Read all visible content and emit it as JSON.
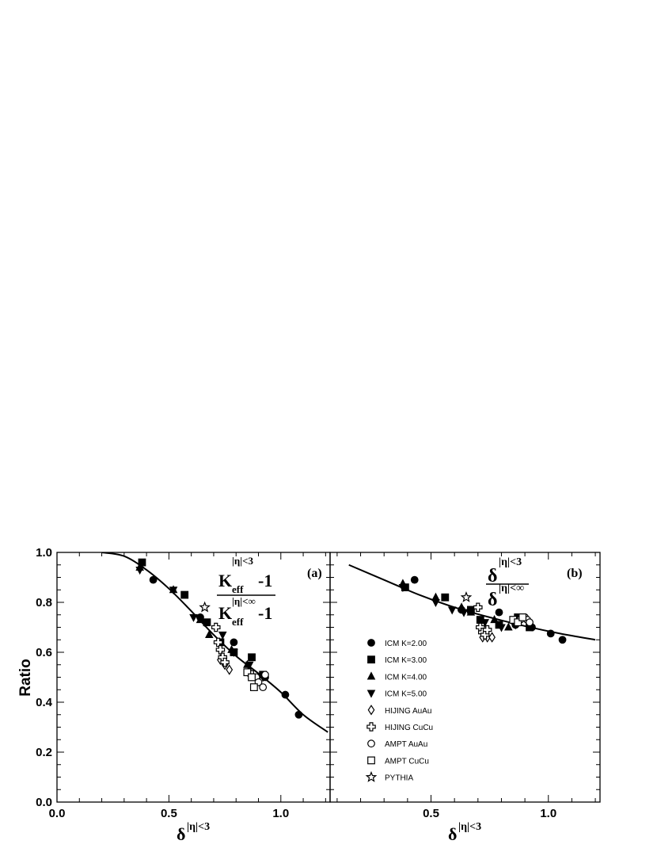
{
  "chart_data": [
    {
      "type": "scatter",
      "panel": "a",
      "panel_label": "(a)",
      "ylabel": "Ratio",
      "xlabel": {
        "base": "δ",
        "sup": "|η|<3"
      },
      "annotation": {
        "num_base": "K",
        "num_sub": "eff",
        "num_sup": "|η|<3",
        "num_tail": "-1",
        "den_base": "K",
        "den_sub": "eff",
        "den_sup": "|η|<∞",
        "den_tail": "-1"
      },
      "xlim": [
        0.0,
        1.22
      ],
      "ylim": [
        0.0,
        1.0
      ],
      "xticks": [
        "0.0",
        "0.5",
        "1.0"
      ],
      "yticks": [
        "0.0",
        "0.2",
        "0.4",
        "0.6",
        "0.8",
        "1.0"
      ],
      "curve": [
        [
          0.2,
          1.0
        ],
        [
          0.3,
          0.985
        ],
        [
          0.4,
          0.93
        ],
        [
          0.5,
          0.855
        ],
        [
          0.6,
          0.765
        ],
        [
          0.7,
          0.67
        ],
        [
          0.8,
          0.585
        ],
        [
          0.9,
          0.515
        ],
        [
          1.0,
          0.44
        ],
        [
          1.1,
          0.35
        ],
        [
          1.21,
          0.28
        ]
      ],
      "series": [
        {
          "marker": "circle-filled",
          "points": [
            [
              0.43,
              0.89
            ],
            [
              0.64,
              0.74
            ],
            [
              0.79,
              0.64
            ],
            [
              0.93,
              0.5
            ],
            [
              1.02,
              0.43
            ],
            [
              1.08,
              0.35
            ]
          ]
        },
        {
          "marker": "square-filled",
          "points": [
            [
              0.38,
              0.96
            ],
            [
              0.57,
              0.83
            ],
            [
              0.67,
              0.72
            ],
            [
              0.73,
              0.64
            ],
            [
              0.79,
              0.6
            ],
            [
              0.87,
              0.58
            ],
            [
              0.92,
              0.51
            ]
          ]
        },
        {
          "marker": "triangle-up-filled",
          "points": [
            [
              0.37,
              0.94
            ],
            [
              0.52,
              0.85
            ],
            [
              0.64,
              0.73
            ],
            [
              0.68,
              0.67
            ],
            [
              0.78,
              0.61
            ],
            [
              0.85,
              0.55
            ]
          ]
        },
        {
          "marker": "triangle-down-filled",
          "points": [
            [
              0.37,
              0.93
            ],
            [
              0.52,
              0.85
            ],
            [
              0.61,
              0.74
            ],
            [
              0.66,
              0.72
            ],
            [
              0.74,
              0.67
            ],
            [
              0.79,
              0.6
            ],
            [
              0.86,
              0.55
            ],
            [
              0.92,
              0.5
            ]
          ]
        },
        {
          "marker": "diamond-open",
          "points": [
            [
              0.73,
              0.57
            ],
            [
              0.75,
              0.55
            ],
            [
              0.77,
              0.53
            ]
          ]
        },
        {
          "marker": "cross-open",
          "points": [
            [
              0.71,
              0.7
            ],
            [
              0.72,
              0.64
            ],
            [
              0.73,
              0.61
            ],
            [
              0.74,
              0.58
            ],
            [
              0.75,
              0.56
            ],
            [
              0.86,
              0.52
            ]
          ]
        },
        {
          "marker": "circle-open",
          "points": [
            [
              0.89,
              0.5
            ],
            [
              0.9,
              0.48
            ],
            [
              0.92,
              0.46
            ],
            [
              0.93,
              0.51
            ]
          ]
        },
        {
          "marker": "square-open",
          "points": [
            [
              0.85,
              0.52
            ],
            [
              0.87,
              0.5
            ],
            [
              0.88,
              0.46
            ]
          ]
        },
        {
          "marker": "star-open",
          "points": [
            [
              0.66,
              0.78
            ]
          ]
        }
      ]
    },
    {
      "type": "scatter",
      "panel": "b",
      "panel_label": "(b)",
      "xlabel": {
        "base": "δ",
        "sup": "|η|<3"
      },
      "annotation": {
        "num_base": "δ",
        "num_sup": "|η|<3",
        "den_base": "δ",
        "den_sup": "|η|<∞"
      },
      "xlim": [
        0.07,
        1.22
      ],
      "ylim": [
        0.0,
        1.0
      ],
      "xticks": [
        "0.5",
        "1.0"
      ],
      "curve": [
        [
          0.15,
          0.95
        ],
        [
          0.3,
          0.89
        ],
        [
          0.45,
          0.83
        ],
        [
          0.6,
          0.78
        ],
        [
          0.75,
          0.74
        ],
        [
          0.9,
          0.705
        ],
        [
          1.05,
          0.675
        ],
        [
          1.2,
          0.65
        ]
      ],
      "legend": [
        {
          "marker": "circle-filled",
          "label": "ICM K=2.00"
        },
        {
          "marker": "square-filled",
          "label": "ICM K=3.00"
        },
        {
          "marker": "triangle-up-filled",
          "label": "ICM K=4.00"
        },
        {
          "marker": "triangle-down-filled",
          "label": "ICM K=5.00"
        },
        {
          "marker": "diamond-open",
          "label": "HIJING AuAu"
        },
        {
          "marker": "cross-open",
          "label": "HIJING CuCu"
        },
        {
          "marker": "circle-open",
          "label": "AMPT AuAu"
        },
        {
          "marker": "square-open",
          "label": "AMPT CuCu"
        },
        {
          "marker": "star-open",
          "label": "PYTHIA"
        }
      ],
      "series": [
        {
          "marker": "circle-filled",
          "points": [
            [
              0.43,
              0.89
            ],
            [
              0.63,
              0.77
            ],
            [
              0.79,
              0.76
            ],
            [
              0.86,
              0.71
            ],
            [
              0.93,
              0.7
            ],
            [
              1.01,
              0.675
            ],
            [
              1.06,
              0.65
            ]
          ]
        },
        {
          "marker": "square-filled",
          "points": [
            [
              0.39,
              0.86
            ],
            [
              0.56,
              0.82
            ],
            [
              0.67,
              0.77
            ],
            [
              0.71,
              0.73
            ],
            [
              0.79,
              0.71
            ],
            [
              0.87,
              0.74
            ],
            [
              0.92,
              0.7
            ]
          ]
        },
        {
          "marker": "triangle-up-filled",
          "points": [
            [
              0.38,
              0.875
            ],
            [
              0.52,
              0.82
            ],
            [
              0.63,
              0.78
            ],
            [
              0.67,
              0.76
            ],
            [
              0.77,
              0.73
            ],
            [
              0.83,
              0.7
            ]
          ]
        },
        {
          "marker": "triangle-down-filled",
          "points": [
            [
              0.38,
              0.86
            ],
            [
              0.52,
              0.8
            ],
            [
              0.59,
              0.77
            ],
            [
              0.64,
              0.76
            ],
            [
              0.73,
              0.72
            ],
            [
              0.8,
              0.7
            ],
            [
              0.86,
              0.71
            ]
          ]
        },
        {
          "marker": "diamond-open",
          "points": [
            [
              0.72,
              0.66
            ],
            [
              0.74,
              0.66
            ],
            [
              0.76,
              0.66
            ]
          ]
        },
        {
          "marker": "cross-open",
          "points": [
            [
              0.7,
              0.78
            ],
            [
              0.71,
              0.7
            ],
            [
              0.72,
              0.68
            ],
            [
              0.73,
              0.67
            ],
            [
              0.74,
              0.69
            ],
            [
              0.86,
              0.72
            ]
          ]
        },
        {
          "marker": "circle-open",
          "points": [
            [
              0.88,
              0.73
            ],
            [
              0.9,
              0.74
            ],
            [
              0.91,
              0.73
            ],
            [
              0.92,
              0.72
            ]
          ]
        },
        {
          "marker": "square-open",
          "points": [
            [
              0.85,
              0.73
            ],
            [
              0.87,
              0.72
            ],
            [
              0.89,
              0.74
            ]
          ]
        },
        {
          "marker": "star-open",
          "points": [
            [
              0.65,
              0.82
            ]
          ]
        }
      ]
    }
  ]
}
